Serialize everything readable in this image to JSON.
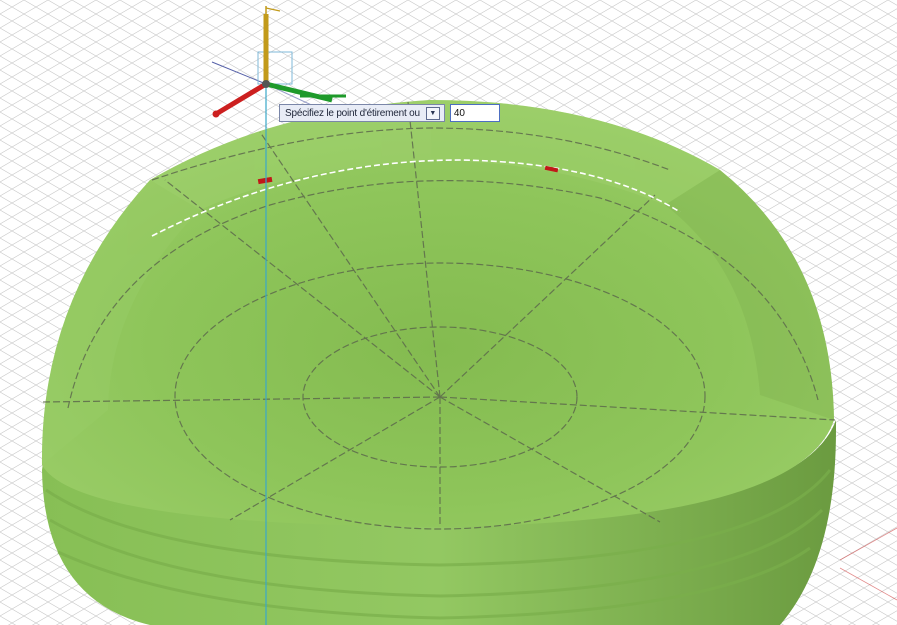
{
  "viewport": {
    "mesh_color": "#8dc458",
    "grid_color": "#c7c7c7",
    "rotation_axis_color": "#3aa8c9",
    "grip_color": "#c01818"
  },
  "ucs_icon": {
    "x_axis_color": "#cc1f1f",
    "y_axis_color": "#1e9a2a",
    "z_axis_color": "#c29a1a"
  },
  "dynamic_input": {
    "prompt": "Spécifiez le point d'étirement ou",
    "options_icon": "down-arrow-icon",
    "value": "40"
  }
}
